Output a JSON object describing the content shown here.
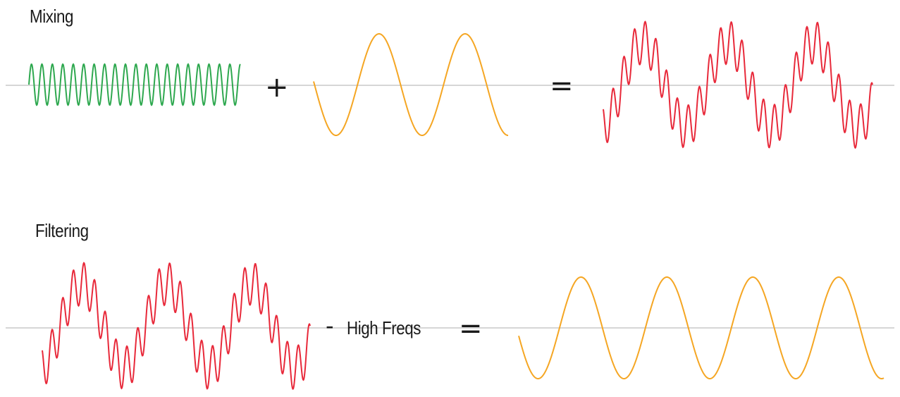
{
  "mixing": {
    "title": "Mixing",
    "plus": "+",
    "equals": "="
  },
  "filtering": {
    "title": "Filtering",
    "minus": "-",
    "remove_label": "High Freqs",
    "equals": "="
  },
  "colors": {
    "high_freq_wave": "#2ea84f",
    "low_freq_wave": "#f5a623",
    "mixed_wave": "#e8293a",
    "baseline": "#c8c8c8",
    "text": "#1a1a1a"
  }
}
